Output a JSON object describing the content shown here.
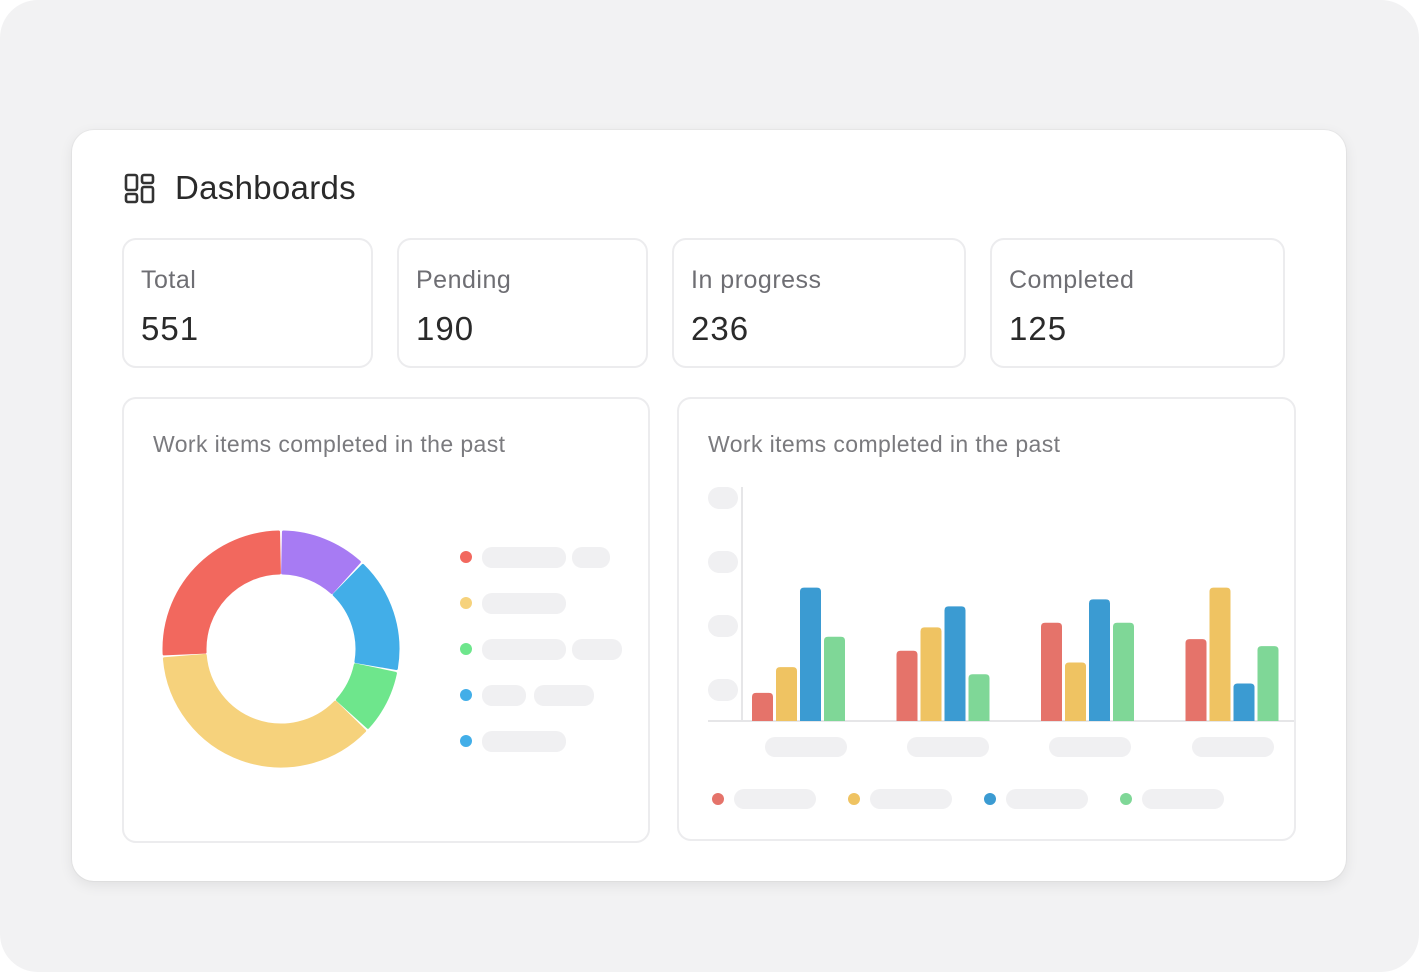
{
  "header": {
    "title": "Dashboards",
    "icon": "dashboard-grid-icon"
  },
  "stats": [
    {
      "label": "Total",
      "value": "551"
    },
    {
      "label": "Pending",
      "value": "190"
    },
    {
      "label": "In progress",
      "value": "236"
    },
    {
      "label": "Completed",
      "value": "125"
    }
  ],
  "donut_panel": {
    "title": "Work items completed in the past"
  },
  "bar_panel": {
    "title": "Work items completed in the past"
  },
  "colors": {
    "red": "#f2685e",
    "purple": "#a77bf3",
    "blue": "#42aee8",
    "green": "#6ee68c",
    "yellow": "#f6d27c",
    "bar_red": "#e5736a",
    "bar_yellow": "#efc362",
    "bar_blue": "#3b9bd2",
    "bar_green": "#7fd797"
  },
  "chart_data": [
    {
      "type": "pie",
      "donut": true,
      "title": "",
      "slices": [
        {
          "value": 12,
          "color": "#a77bf3"
        },
        {
          "value": 16,
          "color": "#42aee8"
        },
        {
          "value": 9,
          "color": "#6ee68c"
        },
        {
          "value": 37,
          "color": "#f6d27c"
        },
        {
          "value": 26,
          "color": "#f2685e"
        }
      ],
      "legend_colors": [
        "#f2685e",
        "#f6d27c",
        "#6ee68c",
        "#42aee8",
        "#42aee8"
      ]
    },
    {
      "type": "bar",
      "title": "",
      "categories": [
        "",
        "",
        "",
        ""
      ],
      "ylim": [
        0,
        100
      ],
      "series": [
        {
          "color": "#e5736a",
          "values": [
            12,
            30,
            42,
            35
          ]
        },
        {
          "color": "#efc362",
          "values": [
            23,
            40,
            25,
            57
          ]
        },
        {
          "color": "#3b9bd2",
          "values": [
            57,
            49,
            52,
            16
          ]
        },
        {
          "color": "#7fd797",
          "values": [
            36,
            20,
            42,
            32
          ]
        }
      ],
      "legend_colors": [
        "#e5736a",
        "#efc362",
        "#3b9bd2",
        "#7fd797"
      ]
    }
  ]
}
